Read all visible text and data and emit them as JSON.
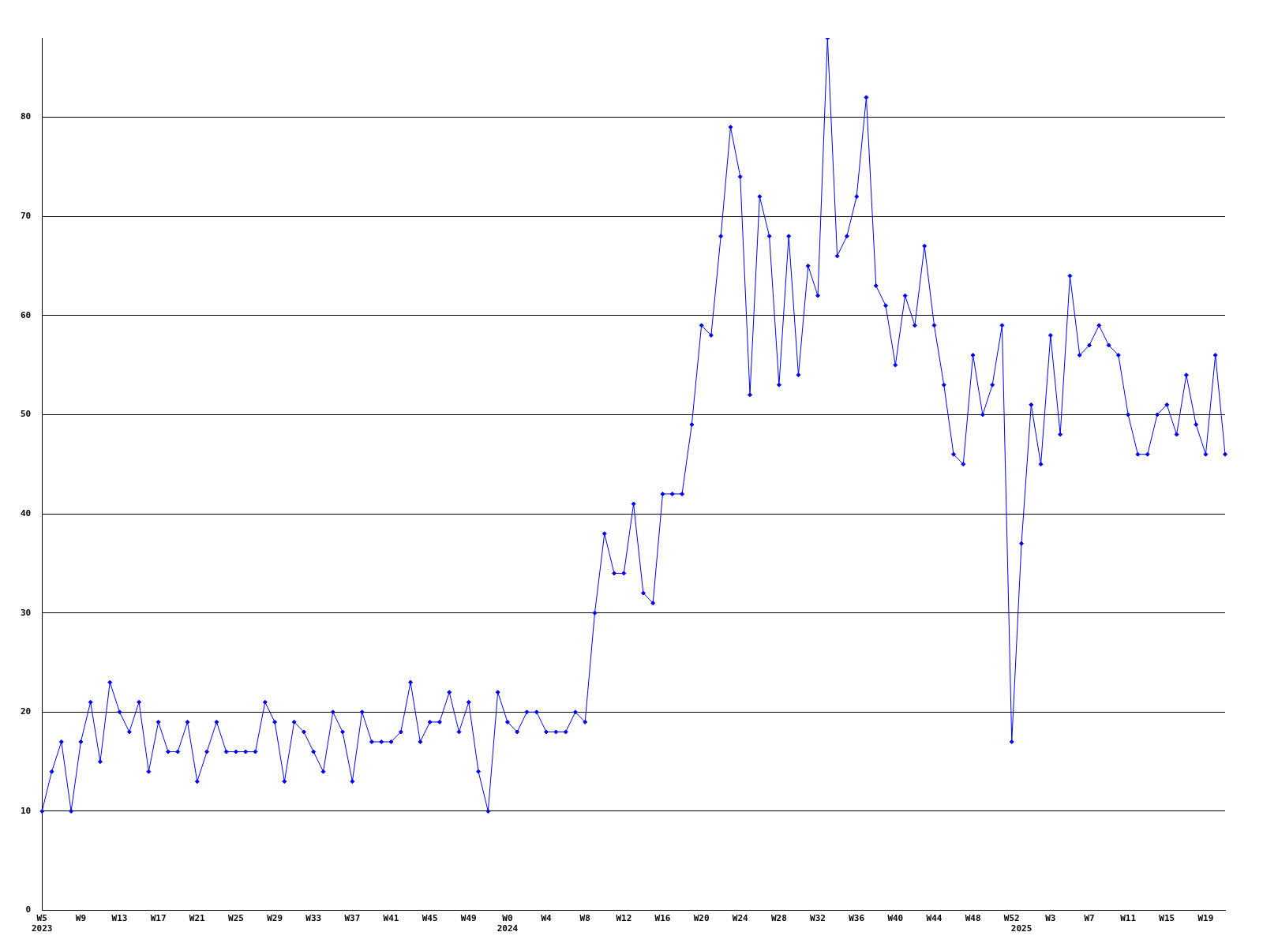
{
  "chart_data": {
    "type": "line",
    "categories": [
      "W5\n2023",
      null,
      null,
      null,
      "W9",
      null,
      null,
      null,
      "W13",
      null,
      null,
      null,
      "W17",
      null,
      null,
      null,
      "W21",
      null,
      null,
      null,
      "W25",
      null,
      null,
      null,
      "W29",
      null,
      null,
      null,
      "W33",
      null,
      null,
      null,
      "W37",
      null,
      null,
      null,
      "W41",
      null,
      null,
      null,
      "W45",
      null,
      null,
      null,
      "W49",
      null,
      null,
      null,
      "W0\n2024",
      null,
      null,
      null,
      "W4",
      null,
      null,
      null,
      "W8",
      null,
      null,
      null,
      "W12",
      null,
      null,
      null,
      "W16",
      null,
      null,
      null,
      "W20",
      null,
      null,
      null,
      "W24",
      null,
      null,
      null,
      "W28",
      null,
      null,
      null,
      "W32",
      null,
      null,
      null,
      "W36",
      null,
      null,
      null,
      "W40",
      null,
      null,
      null,
      "W44",
      null,
      null,
      null,
      "W48",
      null,
      null,
      null,
      "W52",
      "\n2025",
      null,
      null,
      "W3",
      null,
      null,
      null,
      "W7",
      null,
      null,
      null,
      "W11",
      null,
      null,
      null,
      "W15",
      null,
      null,
      null,
      "W19",
      null,
      null
    ],
    "series": [
      {
        "color": "#0000ff",
        "values": [
          10,
          14,
          17,
          10,
          17,
          21,
          15,
          23,
          20,
          18,
          21,
          14,
          19,
          16,
          16,
          19,
          13,
          16,
          19,
          16,
          16,
          16,
          16,
          21,
          19,
          13,
          19,
          18,
          16,
          14,
          20,
          18,
          13,
          20,
          17,
          17,
          17,
          18,
          23,
          17,
          19,
          19,
          22,
          18,
          21,
          14,
          10,
          22,
          19,
          18,
          20,
          20,
          18,
          18,
          18,
          20,
          19,
          30,
          38,
          34,
          34,
          41,
          32,
          31,
          42,
          42,
          42,
          49,
          59,
          58,
          68,
          79,
          74,
          52,
          72,
          68,
          53,
          68,
          54,
          65,
          62,
          88,
          66,
          68,
          72,
          82,
          63,
          61,
          55,
          62,
          59,
          67,
          59,
          53,
          46,
          45,
          56,
          50,
          53,
          59,
          17,
          37,
          51,
          45,
          58,
          48,
          64,
          56,
          57,
          59,
          57,
          56,
          50,
          46,
          46,
          50,
          51,
          48,
          54,
          49,
          46,
          56,
          46
        ]
      }
    ],
    "ylim": [
      0,
      88
    ],
    "yticks": [
      0,
      10,
      20,
      30,
      40,
      50,
      60,
      70,
      80
    ],
    "grid": "y",
    "marker": "diamond",
    "legend": false
  }
}
